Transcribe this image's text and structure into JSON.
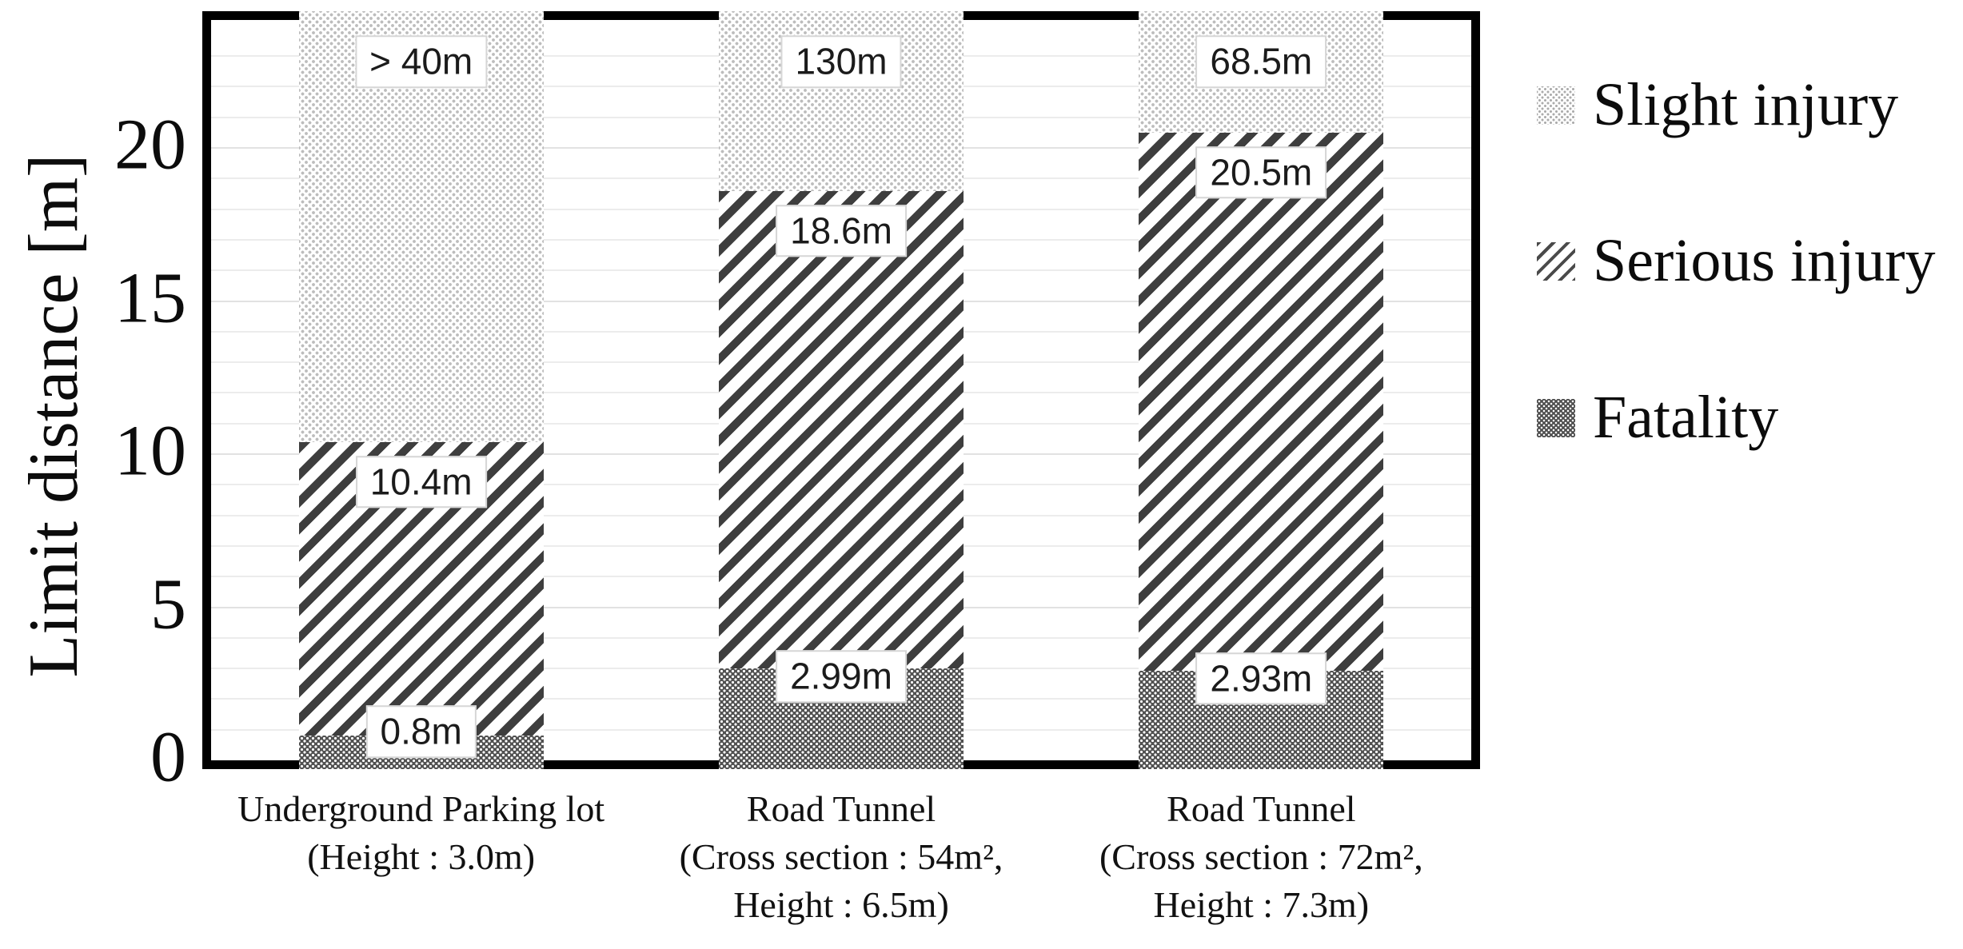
{
  "chart_data": {
    "type": "bar",
    "orientation": "vertical",
    "bar_style": "monochrome patterned bands; band boundaries at absolute limit distances",
    "title": "",
    "xlabel": "",
    "ylabel": "Limit distance [m]",
    "yticks": [
      0,
      5,
      10,
      15,
      20
    ],
    "ylim": [
      0,
      24.2
    ],
    "gridlines": "horizontal, every 1 m, light gray",
    "legend_position": "right",
    "categories": [
      [
        "Underground Parking lot",
        "(Height : 3.0m)"
      ],
      [
        "Road Tunnel",
        "(Cross section : 54m²,",
        "Height : 6.5m)"
      ],
      [
        "Road Tunnel",
        "(Cross section : 72m²,",
        "Height : 7.3m)"
      ]
    ],
    "series": [
      {
        "name": "Fatality",
        "pattern": "dark-checker",
        "values": [
          0.8,
          2.99,
          2.93
        ],
        "data_labels": [
          "0.8m",
          "2.99m",
          "2.93m"
        ]
      },
      {
        "name": "Serious injury",
        "pattern": "diagonal-hatch",
        "values": [
          10.4,
          18.6,
          20.5
        ],
        "data_labels": [
          "10.4m",
          "18.6m",
          "20.5m"
        ]
      },
      {
        "name": "Slight injury",
        "pattern": "light-dots",
        "values": [
          40,
          130,
          68.5
        ],
        "data_labels": [
          "> 40m",
          "130m",
          "68.5m"
        ]
      }
    ],
    "notes": "Slight injury limits (>40m, 130m, 68.5m) exceed the axis maximum and are clipped at the plot top."
  },
  "legend": {
    "items": [
      {
        "label": "Slight injury",
        "pattern": "light-dots"
      },
      {
        "label": "Serious injury",
        "pattern": "diagonal-hatch"
      },
      {
        "label": "Fatality",
        "pattern": "dark-checker"
      }
    ]
  }
}
